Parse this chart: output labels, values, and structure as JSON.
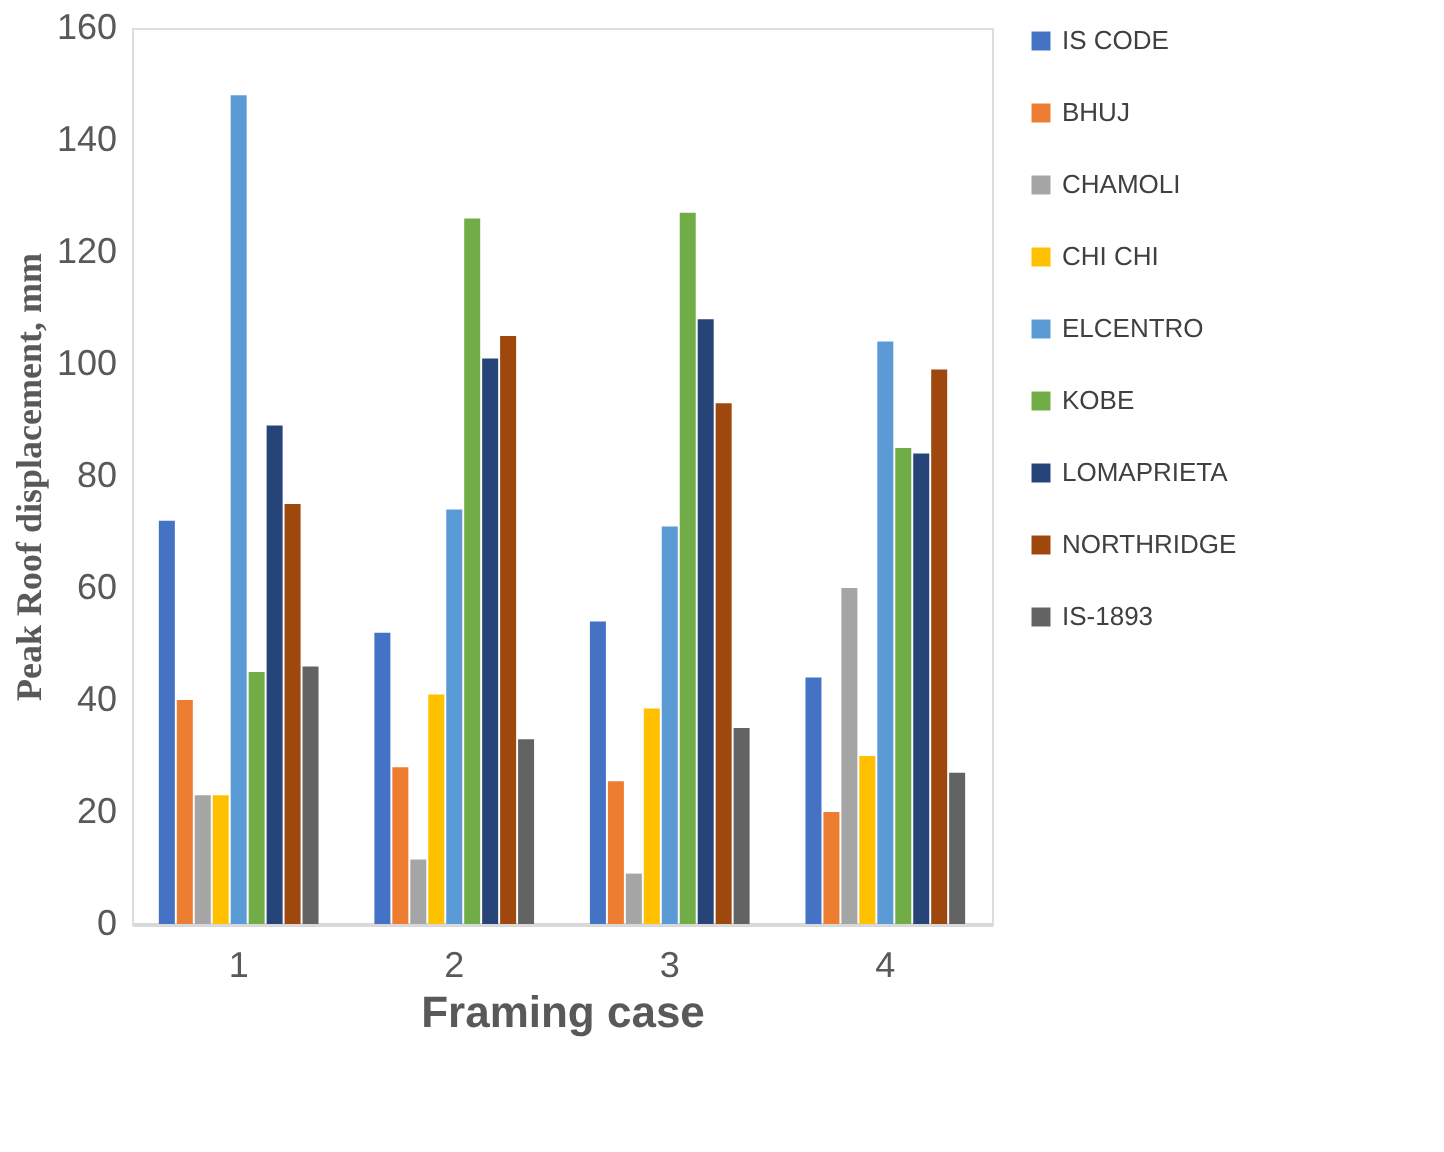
{
  "chart_data": {
    "type": "bar",
    "xlabel": "Framing case",
    "ylabel": "Peak Roof displacement, mm",
    "categories": [
      "1",
      "2",
      "3",
      "4"
    ],
    "ylim": [
      0,
      160
    ],
    "yticks": [
      0,
      20,
      40,
      60,
      80,
      100,
      120,
      140,
      160
    ],
    "grid": false,
    "legend": "right",
    "series": [
      {
        "name": "IS CODE",
        "color": "#4472c4",
        "values": [
          72,
          52,
          54,
          44
        ]
      },
      {
        "name": "BHUJ",
        "color": "#ed7d31",
        "values": [
          40,
          28,
          25.5,
          20
        ]
      },
      {
        "name": "CHAMOLI",
        "color": "#a5a5a5",
        "values": [
          23,
          11.5,
          9,
          60
        ]
      },
      {
        "name": "CHI CHI",
        "color": "#ffc000",
        "values": [
          23,
          41,
          38.5,
          30
        ]
      },
      {
        "name": "ELCENTRO",
        "color": "#5b9bd5",
        "values": [
          148,
          74,
          71,
          104
        ]
      },
      {
        "name": "KOBE",
        "color": "#70ad47",
        "values": [
          45,
          126,
          127,
          85
        ]
      },
      {
        "name": "LOMAPRIETA",
        "color": "#264478",
        "values": [
          89,
          101,
          108,
          84
        ]
      },
      {
        "name": "NORTHRIDGE",
        "color": "#9e480e",
        "values": [
          75,
          105,
          93,
          99
        ]
      },
      {
        "name": "IS-1893",
        "color": "#636363",
        "values": [
          46,
          33,
          35,
          27
        ]
      }
    ]
  }
}
